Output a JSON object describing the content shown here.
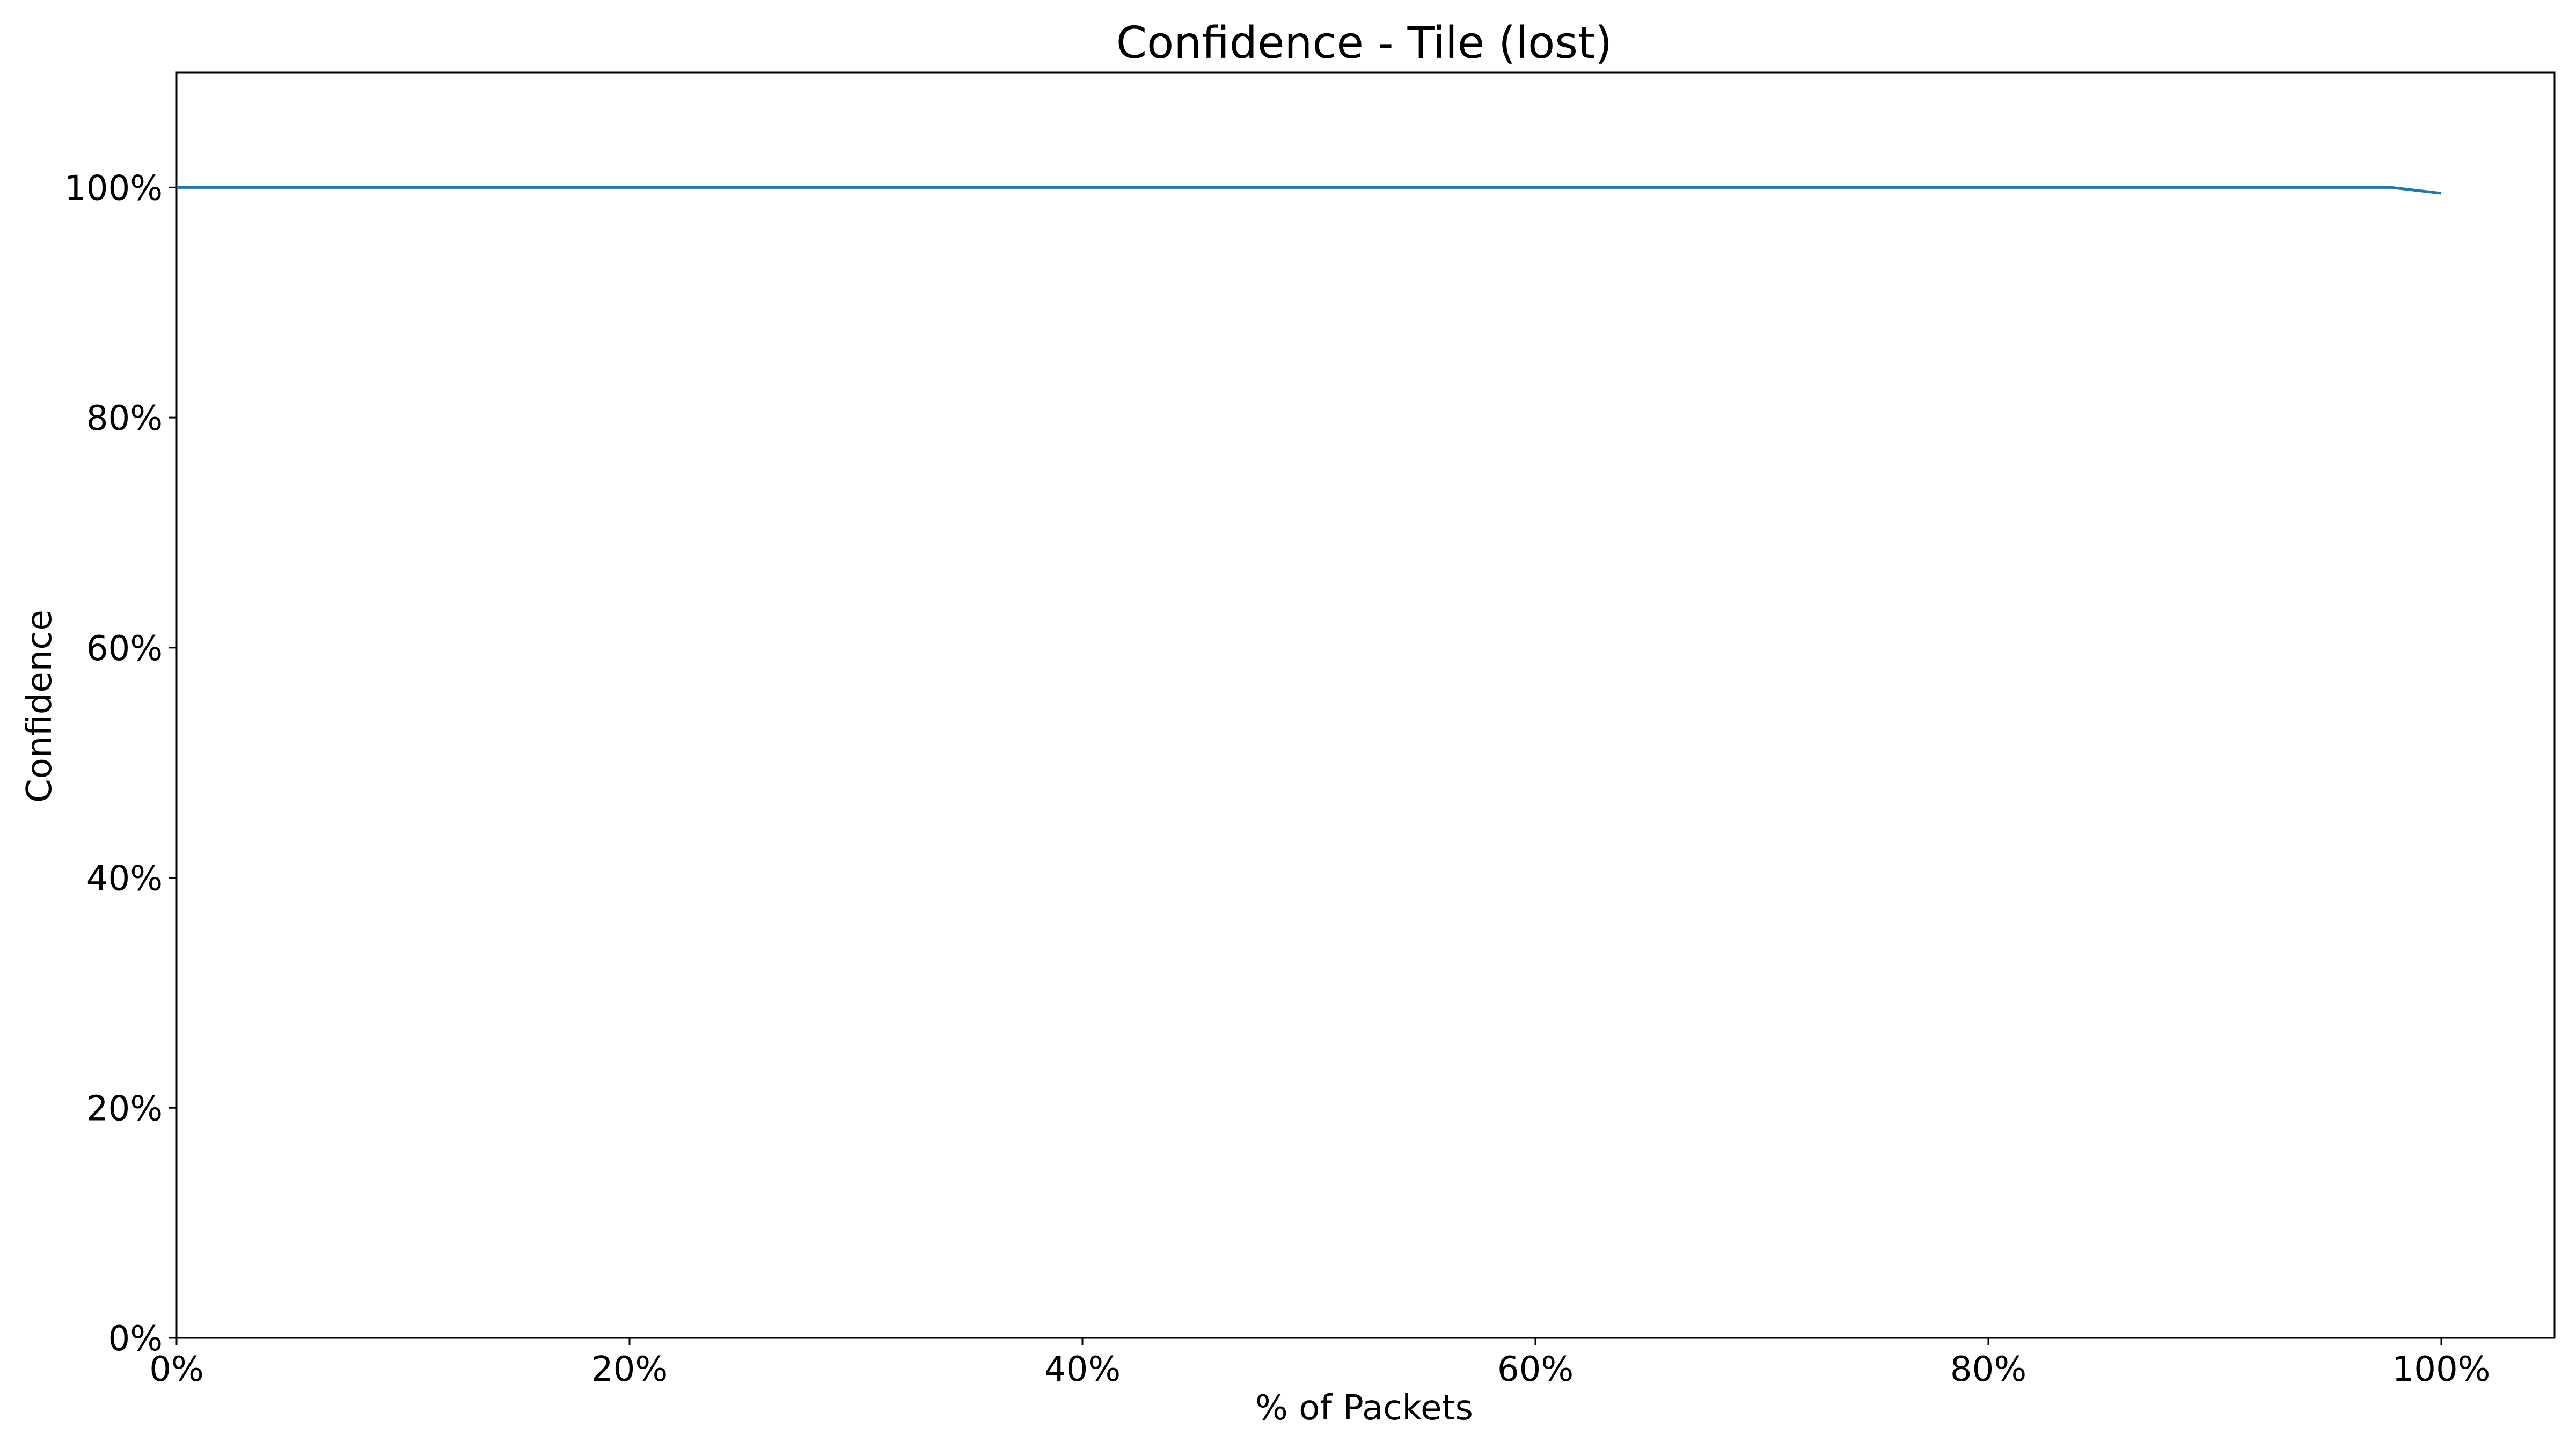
{
  "chart_data": {
    "type": "line",
    "title": "Confidence - Tile (lost)",
    "xlabel": "% of Packets",
    "ylabel": "Confidence",
    "xlim": [
      0,
      105
    ],
    "ylim": [
      0,
      110
    ],
    "grid": false,
    "x_ticks": [
      0,
      20,
      40,
      60,
      80,
      100
    ],
    "x_tick_labels": [
      "0%",
      "20%",
      "40%",
      "60%",
      "80%",
      "100%"
    ],
    "y_ticks": [
      0,
      20,
      40,
      60,
      80,
      100
    ],
    "y_tick_labels": [
      "0%",
      "20%",
      "40%",
      "60%",
      "80%",
      "100%"
    ],
    "series": [
      {
        "color": "#1f77b4",
        "x": [
          0,
          10,
          20,
          30,
          40,
          50,
          60,
          70,
          80,
          90,
          97.8,
          100
        ],
        "y": [
          100,
          100,
          100,
          100,
          100,
          100,
          100,
          100,
          100,
          100,
          100,
          99.5
        ]
      }
    ]
  }
}
